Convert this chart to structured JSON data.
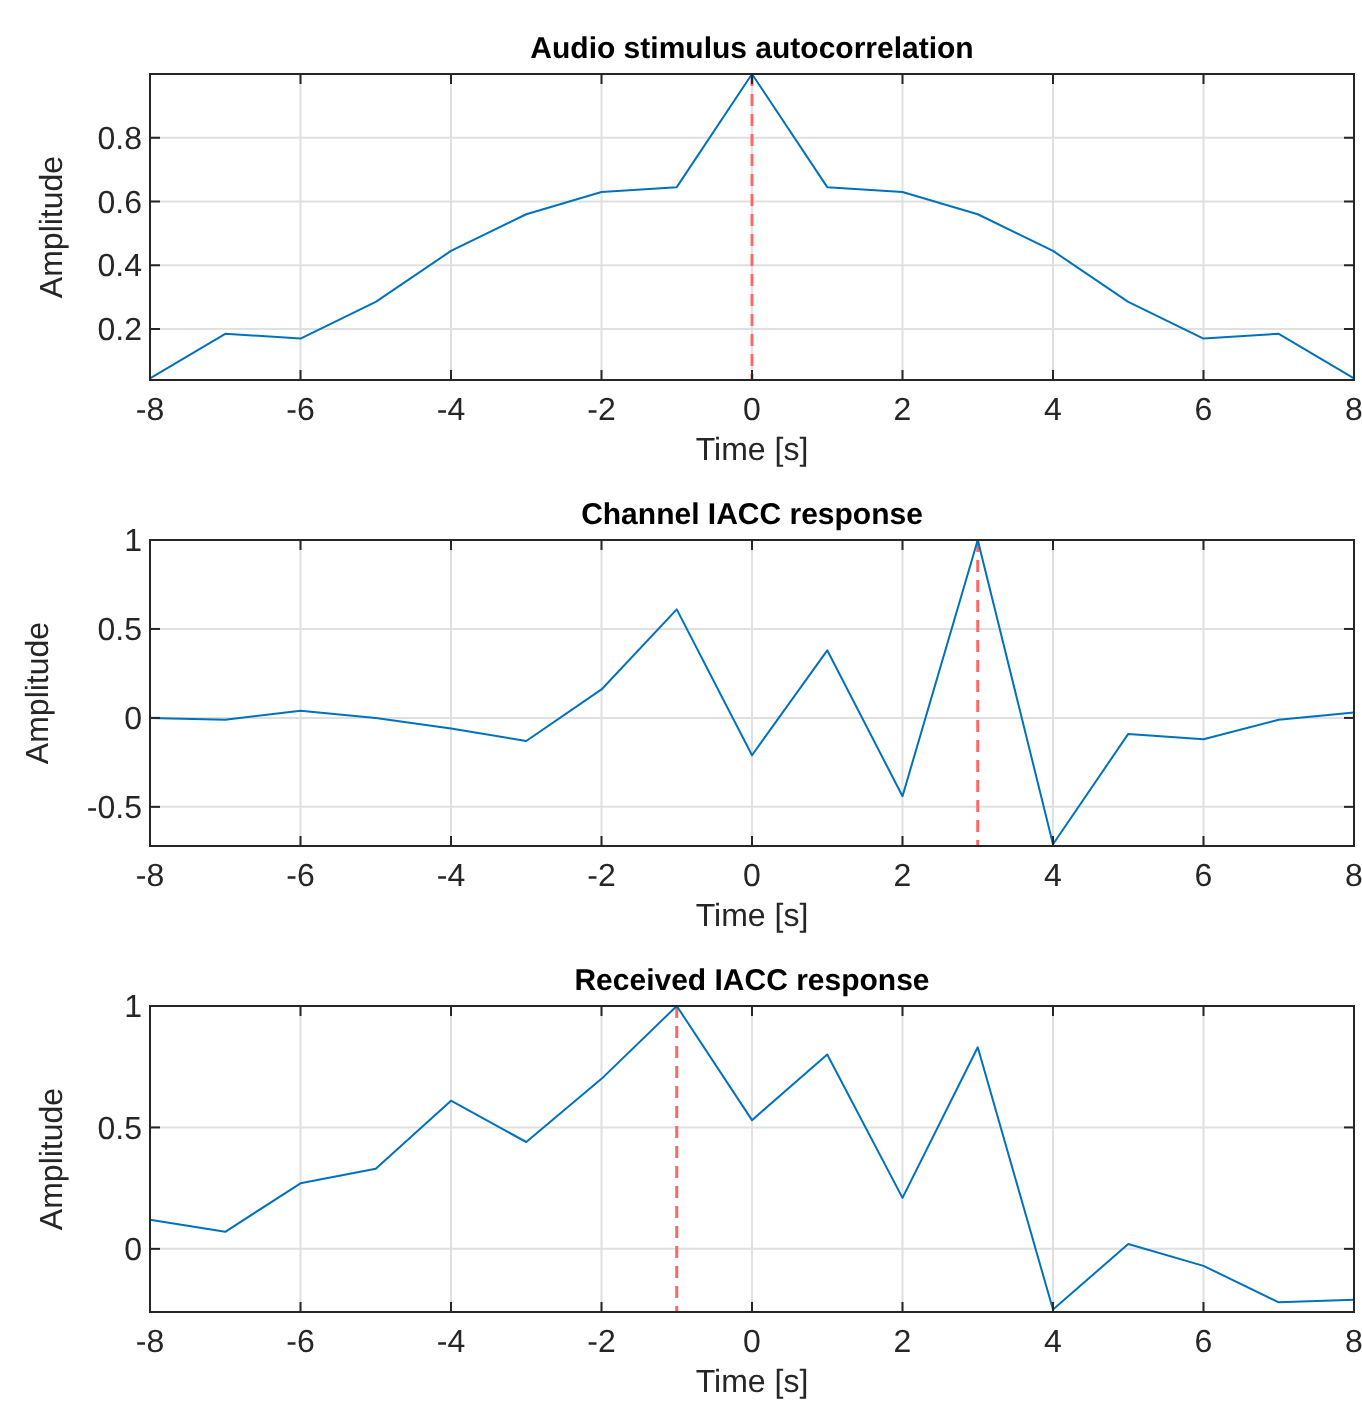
{
  "chart_data": [
    {
      "type": "line",
      "title": "Audio stimulus autocorrelation",
      "xlabel": "Time [s]",
      "ylabel": "Amplitude",
      "x": [
        -8,
        -7,
        -6,
        -5,
        -4,
        -3,
        -2,
        -1,
        0,
        1,
        2,
        3,
        4,
        5,
        6,
        7,
        8
      ],
      "series": [
        {
          "color": "#0072bd",
          "values": [
            0.045,
            0.185,
            0.17,
            0.285,
            0.445,
            0.56,
            0.63,
            0.645,
            1,
            0.645,
            0.63,
            0.56,
            0.445,
            0.285,
            0.17,
            0.185,
            0.045
          ]
        }
      ],
      "xlim": [
        -8,
        8
      ],
      "xticks": [
        -8,
        -6,
        -4,
        -2,
        0,
        2,
        4,
        6,
        8
      ],
      "ylim": [
        0.04,
        1
      ],
      "yticks": [
        0.2,
        0.4,
        0.6,
        0.8
      ],
      "grid": true,
      "ref_lines": [
        {
          "axis": "x",
          "value": 0,
          "color": "#ff6666",
          "line_style": "dashed"
        }
      ]
    },
    {
      "type": "line",
      "title": "Channel IACC response",
      "xlabel": "Time [s]",
      "ylabel": "Amplitude",
      "x": [
        -8,
        -7,
        -6,
        -5,
        -4,
        -3,
        -2,
        -1,
        0,
        1,
        2,
        3,
        4,
        5,
        6,
        7,
        8
      ],
      "series": [
        {
          "color": "#0072bd",
          "values": [
            0,
            -0.01,
            0.04,
            0,
            -0.06,
            -0.13,
            0.16,
            0.61,
            -0.21,
            0.38,
            -0.44,
            1,
            -0.71,
            -0.09,
            -0.12,
            -0.01,
            0.03
          ]
        }
      ],
      "xlim": [
        -8,
        8
      ],
      "xticks": [
        -8,
        -6,
        -4,
        -2,
        0,
        2,
        4,
        6,
        8
      ],
      "ylim": [
        -0.72,
        1
      ],
      "yticks": [
        -0.5,
        0,
        0.5,
        1
      ],
      "grid": true,
      "ref_lines": [
        {
          "axis": "x",
          "value": 3,
          "color": "#ff6666",
          "line_style": "dashed"
        }
      ]
    },
    {
      "type": "line",
      "title": "Received IACC response",
      "xlabel": "Time [s]",
      "ylabel": "Amplitude",
      "x": [
        -8,
        -7,
        -6,
        -5,
        -4,
        -3,
        -2,
        -1,
        0,
        1,
        2,
        3,
        4,
        5,
        6,
        7,
        8
      ],
      "series": [
        {
          "color": "#0072bd",
          "values": [
            0.12,
            0.07,
            0.27,
            0.33,
            0.61,
            0.44,
            0.7,
            1,
            0.53,
            0.8,
            0.21,
            0.83,
            -0.25,
            0.02,
            -0.07,
            -0.22,
            -0.21
          ]
        }
      ],
      "xlim": [
        -8,
        8
      ],
      "xticks": [
        -8,
        -6,
        -4,
        -2,
        0,
        2,
        4,
        6,
        8
      ],
      "ylim": [
        -0.26,
        1
      ],
      "yticks": [
        0,
        0.5,
        1
      ],
      "grid": true,
      "ref_lines": [
        {
          "axis": "x",
          "value": -1,
          "color": "#ff6666",
          "line_style": "dashed"
        }
      ]
    }
  ]
}
